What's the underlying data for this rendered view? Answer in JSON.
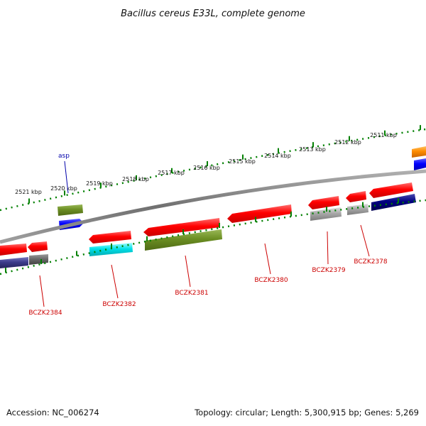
{
  "title": "Bacillus cereus E33L, complete genome",
  "scale_ticks": [
    "2521 kbp",
    "2520 kbp",
    "2519 kbp",
    "2518 kbp",
    "2517 kbp",
    "2516 kbp",
    "2515 kbp",
    "2514 kbp",
    "2513 kbp",
    "2512 kbp",
    "2511 kbp"
  ],
  "gene_labels": [
    "BCZK2384",
    "BCZK2382",
    "BCZK2381",
    "BCZK2380",
    "BCZK2379",
    "BCZK2378"
  ],
  "feature_labels": [
    "asp"
  ],
  "footer": {
    "accession": "Accession: NC_006274",
    "summary": "Topology: circular; Length: 5,300,915 bp; Genes: 5,269"
  },
  "colors": {
    "cds": "#ff0000",
    "olive": "#6b8e23",
    "blue": "#0000ff",
    "cyan": "#00e0e8",
    "navy": "#000080",
    "grey": "#a8a8a8",
    "slate": "#3c3c8c",
    "orange": "#ff8c00",
    "tick": "#008000",
    "backbone": "#808080",
    "label": "#cc0000"
  }
}
